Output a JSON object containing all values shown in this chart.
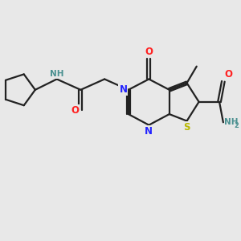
{
  "background_color": "#e8e8e8",
  "bond_color": "#222222",
  "bond_width": 1.6,
  "atom_colors": {
    "N": "#2222ff",
    "O": "#ff2020",
    "S": "#b8b800",
    "NH": "#4a9090",
    "C": "#222222"
  },
  "font_size_atom": 8.5,
  "font_size_small": 7.5,
  "xlim": [
    0,
    10
  ],
  "ylim": [
    0,
    10
  ]
}
